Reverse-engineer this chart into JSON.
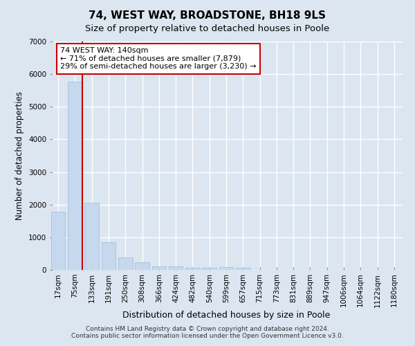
{
  "title": "74, WEST WAY, BROADSTONE, BH18 9LS",
  "subtitle": "Size of property relative to detached houses in Poole",
  "xlabel": "Distribution of detached houses by size in Poole",
  "ylabel": "Number of detached properties",
  "categories": [
    "17sqm",
    "75sqm",
    "133sqm",
    "191sqm",
    "250sqm",
    "308sqm",
    "366sqm",
    "424sqm",
    "482sqm",
    "540sqm",
    "599sqm",
    "657sqm",
    "715sqm",
    "773sqm",
    "831sqm",
    "889sqm",
    "947sqm",
    "1006sqm",
    "1064sqm",
    "1122sqm",
    "1180sqm"
  ],
  "values": [
    1780,
    5780,
    2060,
    840,
    390,
    230,
    115,
    110,
    70,
    60,
    80,
    60,
    0,
    0,
    0,
    0,
    0,
    0,
    0,
    0,
    0
  ],
  "bar_color": "#c5d8ee",
  "bar_edge_color": "#9bbbd8",
  "property_line_color": "#cc0000",
  "annotation_text": "74 WEST WAY: 140sqm\n← 71% of detached houses are smaller (7,879)\n29% of semi-detached houses are larger (3,230) →",
  "annotation_box_color": "#ffffff",
  "annotation_box_edge_color": "#cc0000",
  "ylim": [
    0,
    7000
  ],
  "yticks": [
    0,
    1000,
    2000,
    3000,
    4000,
    5000,
    6000,
    7000
  ],
  "background_color": "#dce6f0",
  "axes_background_color": "#dce6f0",
  "grid_color": "#ffffff",
  "footer_line1": "Contains HM Land Registry data © Crown copyright and database right 2024.",
  "footer_line2": "Contains public sector information licensed under the Open Government Licence v3.0.",
  "title_fontsize": 11,
  "subtitle_fontsize": 9.5,
  "tick_fontsize": 7.5,
  "ylabel_fontsize": 8.5,
  "xlabel_fontsize": 9,
  "annotation_fontsize": 8,
  "footer_fontsize": 6.5
}
